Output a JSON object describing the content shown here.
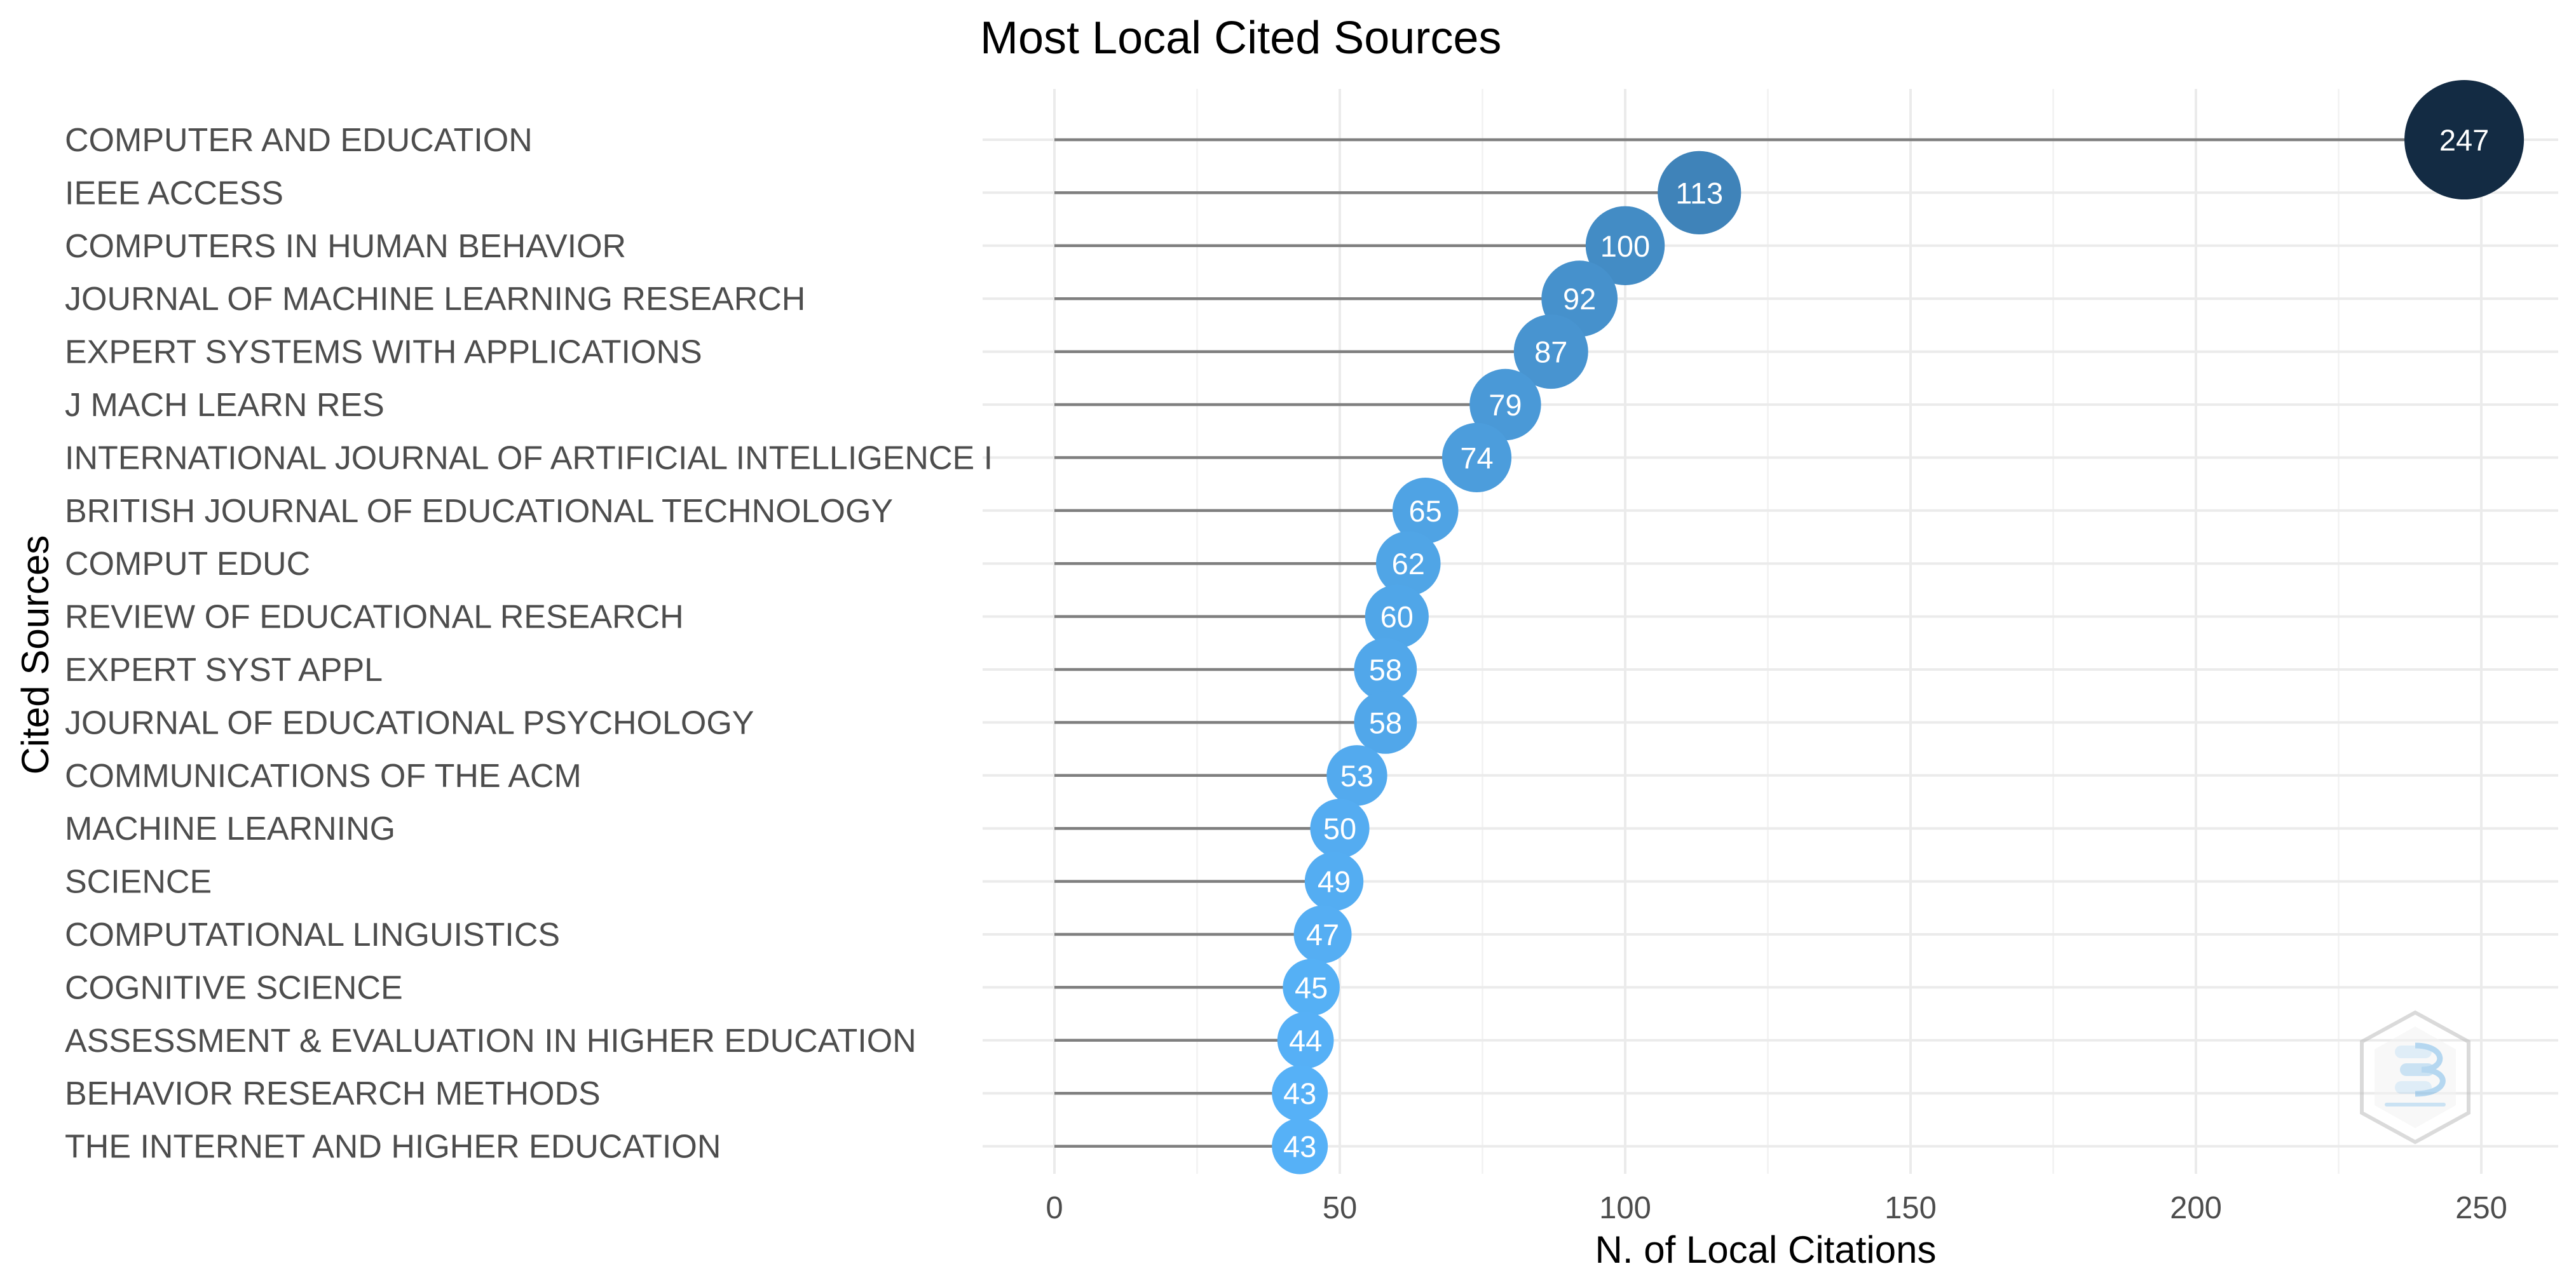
{
  "chart_data": {
    "type": "lollipop",
    "title": "Most Local Cited Sources",
    "xlabel": "N. of Local Citations",
    "ylabel": "Cited Sources",
    "xlim": [
      0,
      250
    ],
    "xticks": [
      0,
      50,
      100,
      150,
      200,
      250
    ],
    "grid": true,
    "color_scale": {
      "low": "#56b1f7",
      "high": "#132b43"
    },
    "categories": [
      "COMPUTER AND EDUCATION",
      "IEEE ACCESS",
      "COMPUTERS IN HUMAN BEHAVIOR",
      "JOURNAL OF MACHINE LEARNING RESEARCH",
      "EXPERT SYSTEMS WITH APPLICATIONS",
      "J MACH LEARN RES",
      "INTERNATIONAL JOURNAL OF ARTIFICIAL INTELLIGENCE I",
      "BRITISH JOURNAL OF EDUCATIONAL TECHNOLOGY",
      "COMPUT EDUC",
      "REVIEW OF EDUCATIONAL RESEARCH",
      "EXPERT SYST APPL",
      "JOURNAL OF EDUCATIONAL PSYCHOLOGY",
      "COMMUNICATIONS OF THE ACM",
      "MACHINE LEARNING",
      "SCIENCE",
      "COMPUTATIONAL LINGUISTICS",
      "COGNITIVE SCIENCE",
      "ASSESSMENT & EVALUATION IN HIGHER EDUCATION",
      "BEHAVIOR RESEARCH METHODS",
      "THE INTERNET AND HIGHER EDUCATION"
    ],
    "values": [
      247,
      113,
      100,
      92,
      87,
      79,
      74,
      65,
      62,
      60,
      58,
      58,
      53,
      50,
      49,
      47,
      45,
      44,
      43,
      43
    ]
  },
  "watermark": {
    "icon": "bibliometrix-logo-icon"
  }
}
